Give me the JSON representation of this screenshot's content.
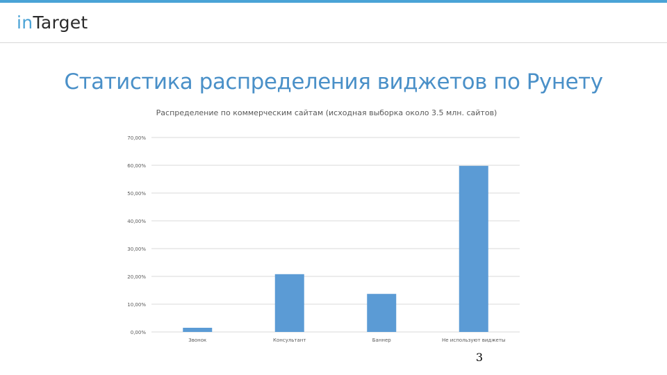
{
  "header": {
    "logo_in": "in",
    "logo_target": "Target"
  },
  "page": {
    "title": "Статистика распределения виджетов по Рунету",
    "number": "3"
  },
  "colors": {
    "accent": "#4aa3d6",
    "title": "#4a90c8",
    "bar": "#5b9bd5",
    "grid": "#d9d9d9"
  },
  "chart_data": {
    "type": "bar",
    "title": "Распределение по коммерческим сайтам (исходная выборка около 3.5 млн. сайтов)",
    "categories": [
      "Звонок",
      "Консультант",
      "Баннер",
      "Не используют виджеты"
    ],
    "values": [
      1.5,
      20.8,
      13.7,
      59.8
    ],
    "yticks": [
      "0,00%",
      "10,00%",
      "20,00%",
      "30,00%",
      "40,00%",
      "50,00%",
      "60,00%",
      "70,00%"
    ],
    "ylim": [
      0,
      70
    ],
    "grid": true,
    "xlabel": "",
    "ylabel": ""
  }
}
